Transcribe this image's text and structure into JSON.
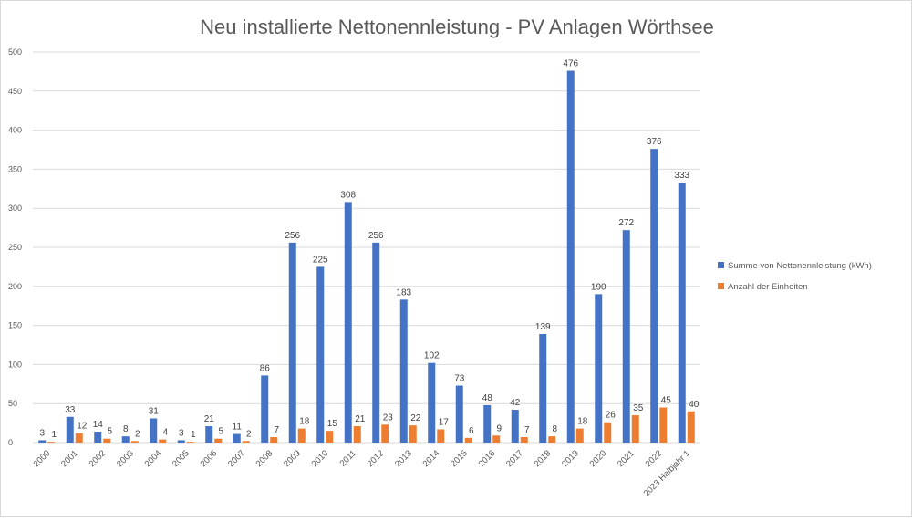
{
  "chart_data": {
    "type": "bar",
    "title": "Neu installierte Nettonennleistung - PV Anlagen Wörthsee",
    "xlabel": "",
    "ylabel": "",
    "ylim": [
      0,
      500
    ],
    "yticks": [
      0,
      50,
      100,
      150,
      200,
      250,
      300,
      350,
      400,
      450,
      500
    ],
    "grid": true,
    "legend_position": "right",
    "categories": [
      "2000",
      "2001",
      "2002",
      "2003",
      "2004",
      "2005",
      "2006",
      "2007",
      "2008",
      "2009",
      "2010",
      "2011",
      "2012",
      "2013",
      "2014",
      "2015",
      "2016",
      "2017",
      "2018",
      "2019",
      "2020",
      "2021",
      "2022",
      "2023 Halbjahr 1"
    ],
    "series": [
      {
        "name": "Summe von Nettonennleistung (kWh)",
        "color": "#4472C4",
        "values": [
          3,
          33,
          14,
          8,
          31,
          3,
          21,
          11,
          86,
          256,
          225,
          308,
          256,
          183,
          102,
          73,
          48,
          42,
          139,
          476,
          190,
          272,
          376,
          333
        ]
      },
      {
        "name": "Anzahl der Einheiten",
        "color": "#ED7D31",
        "values": [
          1,
          12,
          5,
          2,
          4,
          1,
          5,
          2,
          7,
          18,
          15,
          21,
          23,
          22,
          17,
          6,
          9,
          7,
          8,
          18,
          26,
          35,
          45,
          40
        ]
      }
    ]
  }
}
